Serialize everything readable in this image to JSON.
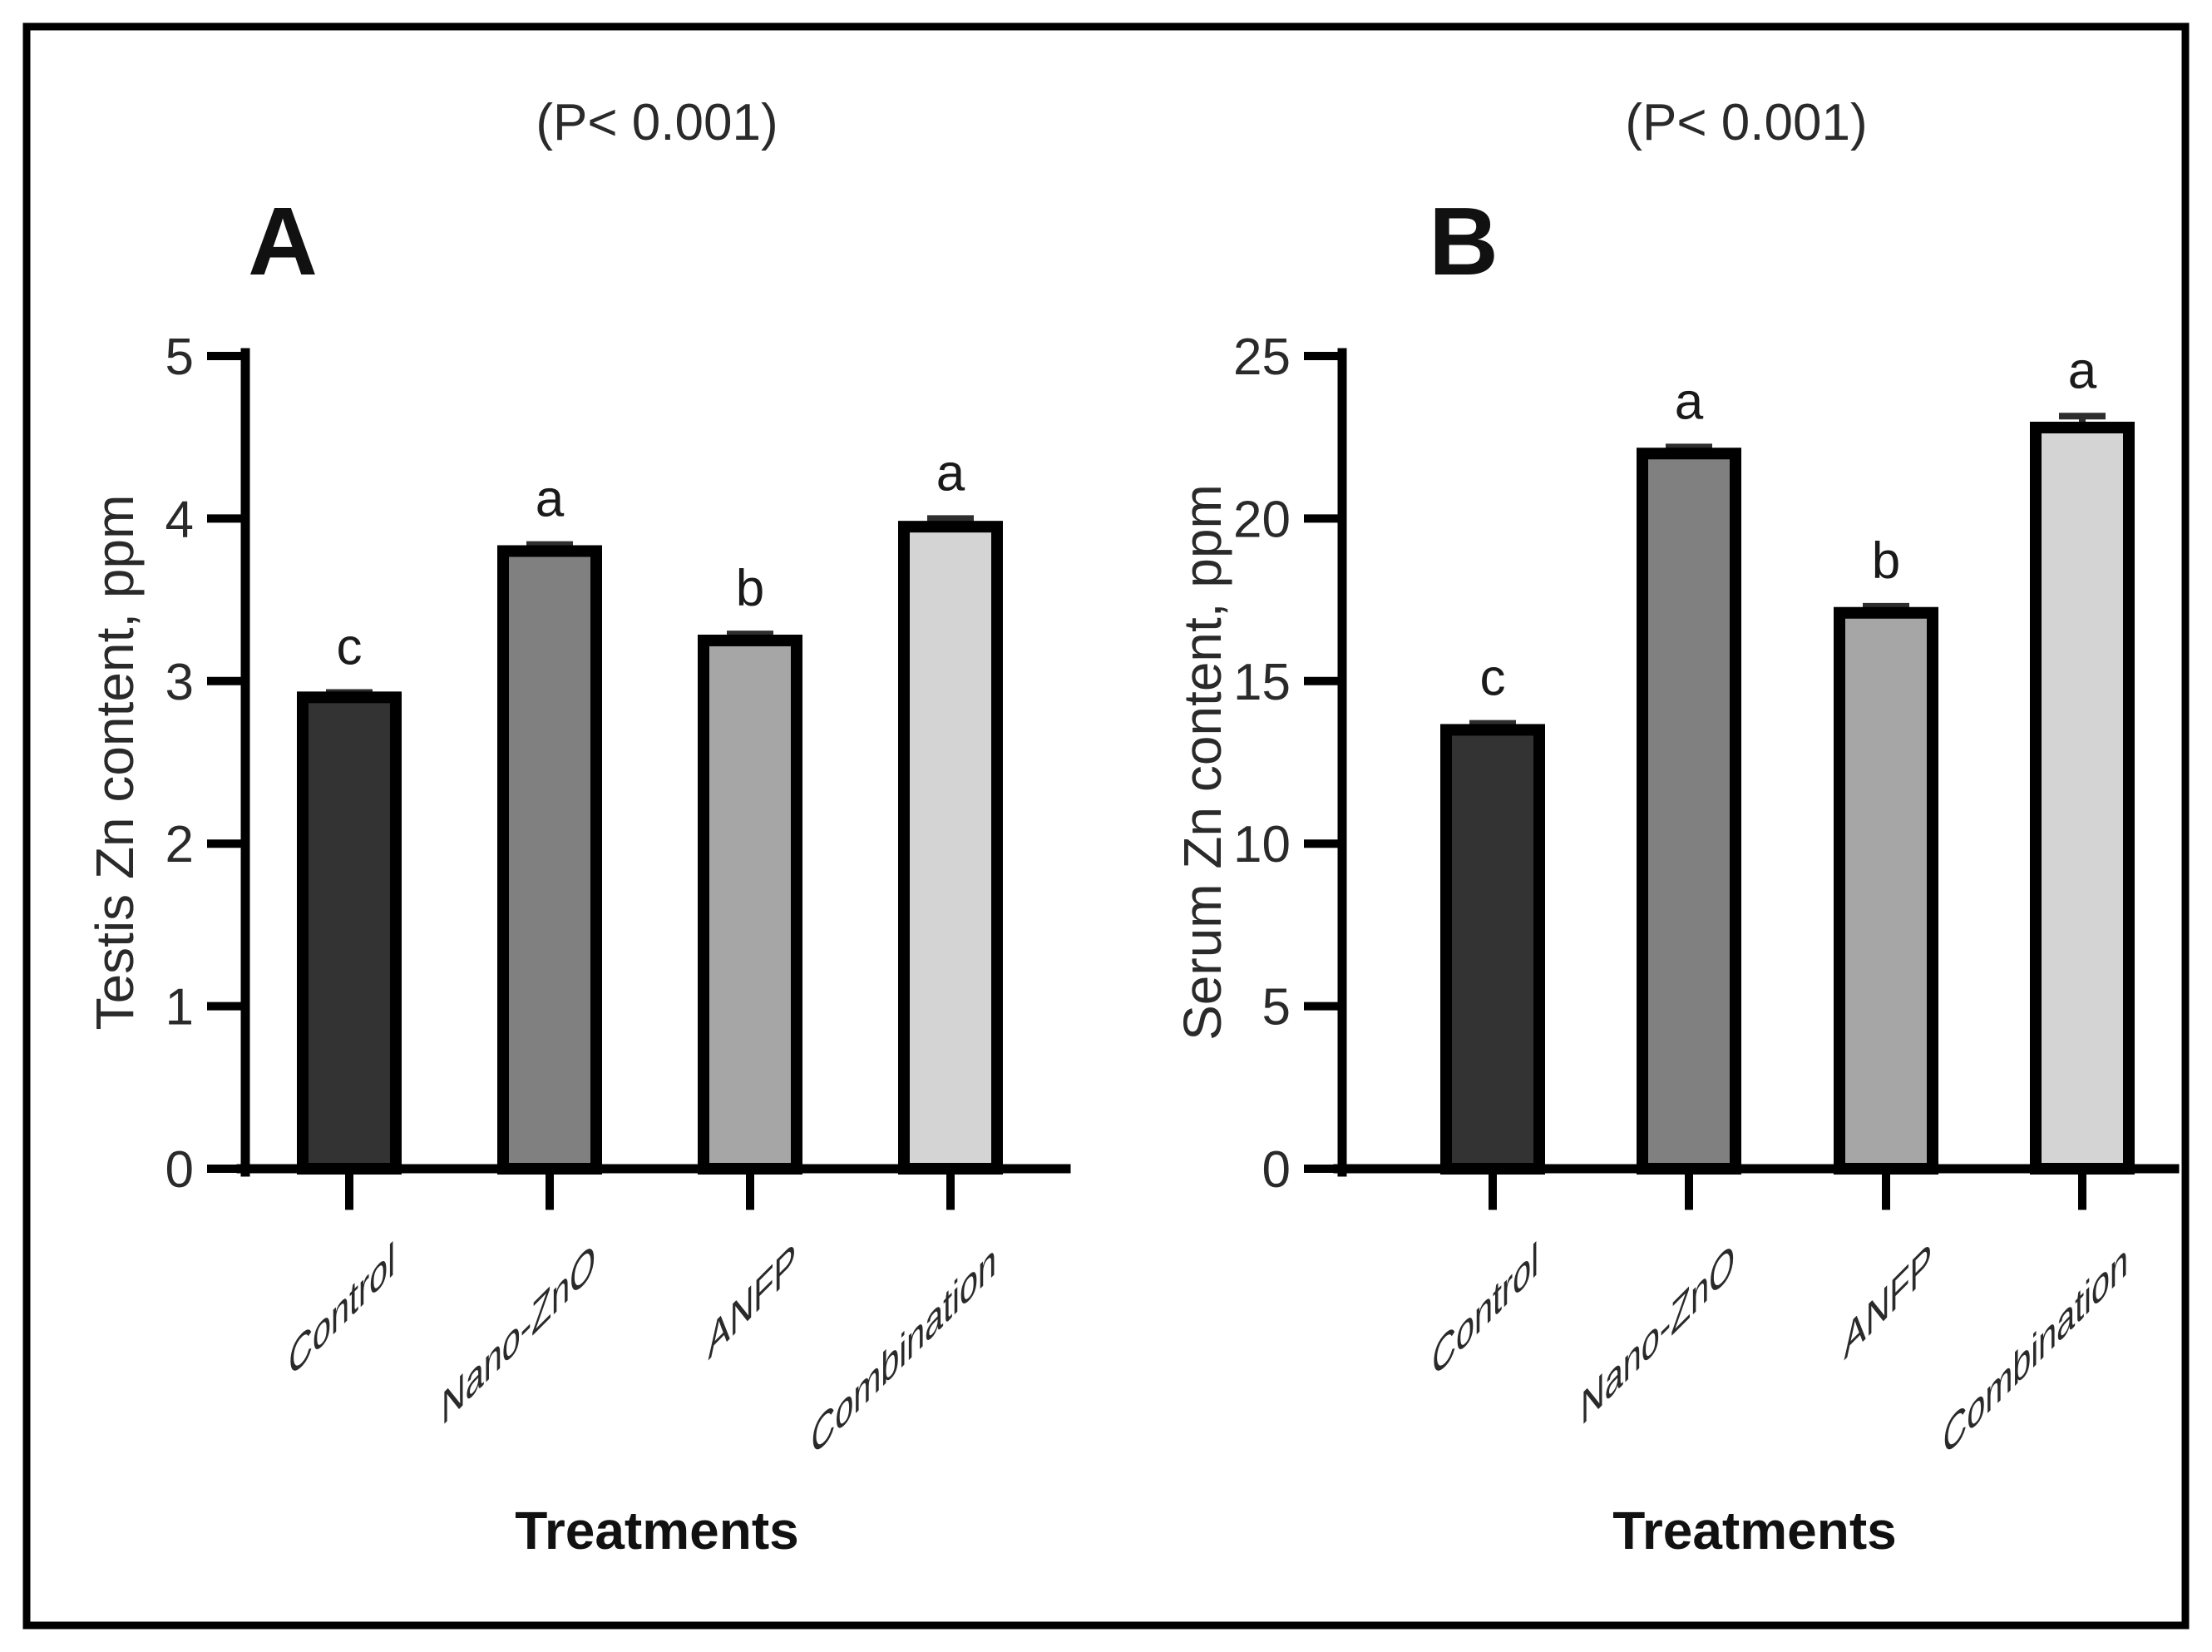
{
  "chart_data": [
    {
      "type": "bar",
      "panel_label": "A",
      "title": "(P< 0.001)",
      "xlabel": "Treatments",
      "ylabel": "Testis Zn content, ppm",
      "categories": [
        "Control",
        "Nano-ZnO",
        "ANFP",
        "Combination"
      ],
      "values": [
        2.9,
        3.8,
        3.25,
        3.95
      ],
      "errors": [
        0.03,
        0.04,
        0.04,
        0.05
      ],
      "sig_letters": [
        "c",
        "a",
        "b",
        "a"
      ],
      "ylim": [
        0,
        5
      ],
      "ytick_step": 1,
      "yticks": [
        0,
        1,
        2,
        3,
        4,
        5
      ],
      "bar_colors": [
        "#333333",
        "#808080",
        "#a6a6a6",
        "#d4d4d4"
      ],
      "bar_border_color": "#000000",
      "grid": false,
      "legend": false
    },
    {
      "type": "bar",
      "panel_label": "B",
      "title": "(P< 0.001)",
      "xlabel": "Treatments",
      "ylabel": "Serum Zn content, ppm",
      "categories": [
        "Control",
        "Nano-ZnO",
        "ANFP",
        "Combination"
      ],
      "values": [
        13.5,
        22.0,
        17.1,
        22.8
      ],
      "errors": [
        0.2,
        0.2,
        0.2,
        0.35
      ],
      "sig_letters": [
        "c",
        "a",
        "b",
        "a"
      ],
      "ylim": [
        0,
        25
      ],
      "ytick_step": 5,
      "yticks": [
        0,
        5,
        10,
        15,
        20,
        25
      ],
      "bar_colors": [
        "#333333",
        "#808080",
        "#a6a6a6",
        "#d4d4d4"
      ],
      "bar_border_color": "#000000",
      "grid": false,
      "legend": false
    }
  ]
}
